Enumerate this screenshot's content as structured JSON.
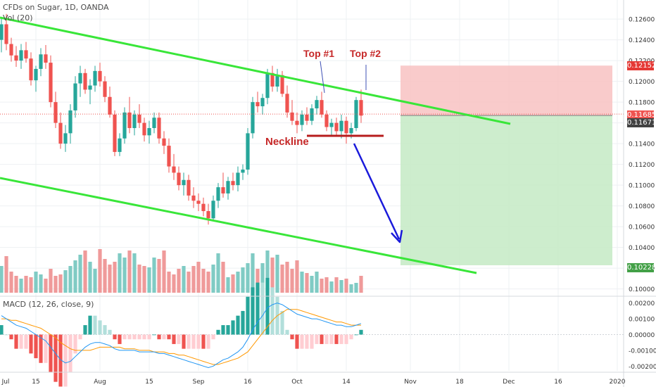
{
  "header": {
    "symbol": "CFDs on Sugar, 1D, OANDA",
    "volume_label": "Vol (20)",
    "macd_label": "MACD (12, 26, close, 9)"
  },
  "colors": {
    "up": "#26a69a",
    "down": "#ef5350",
    "up_volume": "#80cbc4",
    "down_volume": "#ef9a9a",
    "channel": "#39e639",
    "neckline": "#b71c1c",
    "target_arrow": "#1a1adb",
    "macd_line": "#2196f3",
    "signal_line": "#ff9800",
    "stop_zone": "#f8c2c2",
    "target_zone": "#c8ebc8"
  },
  "annotations": {
    "top1": "Top #1",
    "top2": "Top #2",
    "neckline": "Neckline"
  },
  "price_tags": [
    {
      "label": "0.12152",
      "bg": "#e53935"
    },
    {
      "label": "0.11685",
      "bg": "#ef5350"
    },
    {
      "label": "0.11671",
      "bg": "#424242"
    },
    {
      "label": "0.10228",
      "bg": "#43a047"
    }
  ],
  "chart_data": [
    {
      "type": "candlestick",
      "price_axis": {
        "ylim": [
          0.0995,
          0.1275
        ],
        "ticks": [
          "0.12600",
          "0.12400",
          "0.12200",
          "0.12000",
          "0.11800",
          "0.11600",
          "0.11400",
          "0.11200",
          "0.11000",
          "0.10800",
          "0.10600",
          "0.10400",
          "0.10200",
          "0.10000"
        ]
      },
      "x_ticks": [
        {
          "label": "Jul",
          "bar": -3
        },
        {
          "label": "15",
          "bar": 7
        },
        {
          "label": "Aug",
          "bar": 20
        },
        {
          "label": "15",
          "bar": 30
        },
        {
          "label": "Sep",
          "bar": 40
        },
        {
          "label": "16",
          "bar": 50
        },
        {
          "label": "Oct",
          "bar": 60
        },
        {
          "label": "14",
          "bar": 70
        },
        {
          "label": "Nov",
          "bar": 83
        },
        {
          "label": "18",
          "bar": 93
        },
        {
          "label": "Dec",
          "bar": 103
        },
        {
          "label": "16",
          "bar": 113
        },
        {
          "label": "2020",
          "bar": 125
        },
        {
          "label": "20",
          "bar": 137
        }
      ],
      "candles": [
        {
          "o": 0.124,
          "h": 0.1262,
          "l": 0.1228,
          "c": 0.1255
        },
        {
          "o": 0.1255,
          "h": 0.1265,
          "l": 0.123,
          "c": 0.1236
        },
        {
          "o": 0.1236,
          "h": 0.1242,
          "l": 0.1219,
          "c": 0.1225
        },
        {
          "o": 0.1225,
          "h": 0.1234,
          "l": 0.1214,
          "c": 0.122
        },
        {
          "o": 0.122,
          "h": 0.1236,
          "l": 0.1212,
          "c": 0.123
        },
        {
          "o": 0.123,
          "h": 0.1238,
          "l": 0.1218,
          "c": 0.1222
        },
        {
          "o": 0.1222,
          "h": 0.1228,
          "l": 0.1196,
          "c": 0.1201
        },
        {
          "o": 0.1201,
          "h": 0.1215,
          "l": 0.119,
          "c": 0.1212
        },
        {
          "o": 0.1212,
          "h": 0.1232,
          "l": 0.1205,
          "c": 0.1226
        },
        {
          "o": 0.1226,
          "h": 0.1235,
          "l": 0.1212,
          "c": 0.1218
        },
        {
          "o": 0.1218,
          "h": 0.1225,
          "l": 0.1175,
          "c": 0.118
        },
        {
          "o": 0.118,
          "h": 0.119,
          "l": 0.1155,
          "c": 0.116
        },
        {
          "o": 0.116,
          "h": 0.117,
          "l": 0.1135,
          "c": 0.114
        },
        {
          "o": 0.114,
          "h": 0.1158,
          "l": 0.1132,
          "c": 0.115
        },
        {
          "o": 0.115,
          "h": 0.1178,
          "l": 0.114,
          "c": 0.1172
        },
        {
          "o": 0.1172,
          "h": 0.1205,
          "l": 0.1165,
          "c": 0.1198
        },
        {
          "o": 0.1198,
          "h": 0.1215,
          "l": 0.1185,
          "c": 0.1208
        },
        {
          "o": 0.1208,
          "h": 0.1212,
          "l": 0.1188,
          "c": 0.1192
        },
        {
          "o": 0.1192,
          "h": 0.1202,
          "l": 0.1178,
          "c": 0.1196
        },
        {
          "o": 0.1196,
          "h": 0.1215,
          "l": 0.119,
          "c": 0.121
        },
        {
          "o": 0.121,
          "h": 0.1218,
          "l": 0.1195,
          "c": 0.12
        },
        {
          "o": 0.12,
          "h": 0.1205,
          "l": 0.118,
          "c": 0.1185
        },
        {
          "o": 0.1185,
          "h": 0.1195,
          "l": 0.1165,
          "c": 0.1168
        },
        {
          "o": 0.1168,
          "h": 0.1172,
          "l": 0.1128,
          "c": 0.1132
        },
        {
          "o": 0.1132,
          "h": 0.115,
          "l": 0.1128,
          "c": 0.1145
        },
        {
          "o": 0.1145,
          "h": 0.1175,
          "l": 0.114,
          "c": 0.117
        },
        {
          "o": 0.117,
          "h": 0.1185,
          "l": 0.115,
          "c": 0.1155
        },
        {
          "o": 0.1155,
          "h": 0.1172,
          "l": 0.1148,
          "c": 0.1168
        },
        {
          "o": 0.1168,
          "h": 0.1178,
          "l": 0.1155,
          "c": 0.116
        },
        {
          "o": 0.116,
          "h": 0.1165,
          "l": 0.1142,
          "c": 0.1148
        },
        {
          "o": 0.1148,
          "h": 0.1162,
          "l": 0.114,
          "c": 0.1155
        },
        {
          "o": 0.1155,
          "h": 0.117,
          "l": 0.115,
          "c": 0.1165
        },
        {
          "o": 0.1165,
          "h": 0.117,
          "l": 0.114,
          "c": 0.1145
        },
        {
          "o": 0.1145,
          "h": 0.1152,
          "l": 0.113,
          "c": 0.1138
        },
        {
          "o": 0.1138,
          "h": 0.1145,
          "l": 0.1112,
          "c": 0.1118
        },
        {
          "o": 0.1118,
          "h": 0.113,
          "l": 0.1105,
          "c": 0.1112
        },
        {
          "o": 0.1112,
          "h": 0.1118,
          "l": 0.1095,
          "c": 0.11
        },
        {
          "o": 0.11,
          "h": 0.1112,
          "l": 0.109,
          "c": 0.1105
        },
        {
          "o": 0.1105,
          "h": 0.111,
          "l": 0.1085,
          "c": 0.109
        },
        {
          "o": 0.109,
          "h": 0.1098,
          "l": 0.1078,
          "c": 0.1085
        },
        {
          "o": 0.1085,
          "h": 0.1092,
          "l": 0.1075,
          "c": 0.1082
        },
        {
          "o": 0.1082,
          "h": 0.1088,
          "l": 0.107,
          "c": 0.1075
        },
        {
          "o": 0.1075,
          "h": 0.1082,
          "l": 0.1062,
          "c": 0.1068
        },
        {
          "o": 0.1068,
          "h": 0.109,
          "l": 0.1066,
          "c": 0.1085
        },
        {
          "o": 0.1085,
          "h": 0.1102,
          "l": 0.1078,
          "c": 0.1098
        },
        {
          "o": 0.1098,
          "h": 0.1112,
          "l": 0.1088,
          "c": 0.1092
        },
        {
          "o": 0.1092,
          "h": 0.1108,
          "l": 0.1086,
          "c": 0.1104
        },
        {
          "o": 0.1104,
          "h": 0.1112,
          "l": 0.1095,
          "c": 0.11
        },
        {
          "o": 0.11,
          "h": 0.1118,
          "l": 0.1094,
          "c": 0.1112
        },
        {
          "o": 0.1112,
          "h": 0.112,
          "l": 0.1105,
          "c": 0.1115
        },
        {
          "o": 0.1115,
          "h": 0.1155,
          "l": 0.111,
          "c": 0.115
        },
        {
          "o": 0.115,
          "h": 0.1185,
          "l": 0.1145,
          "c": 0.118
        },
        {
          "o": 0.118,
          "h": 0.119,
          "l": 0.117,
          "c": 0.1176
        },
        {
          "o": 0.1176,
          "h": 0.1188,
          "l": 0.1168,
          "c": 0.1184
        },
        {
          "o": 0.1184,
          "h": 0.1212,
          "l": 0.1178,
          "c": 0.1208
        },
        {
          "o": 0.1208,
          "h": 0.1215,
          "l": 0.119,
          "c": 0.1195
        },
        {
          "o": 0.1195,
          "h": 0.1212,
          "l": 0.119,
          "c": 0.1206
        },
        {
          "o": 0.1206,
          "h": 0.121,
          "l": 0.1185,
          "c": 0.1188
        },
        {
          "o": 0.1188,
          "h": 0.1196,
          "l": 0.1165,
          "c": 0.117
        },
        {
          "o": 0.117,
          "h": 0.1182,
          "l": 0.1158,
          "c": 0.1162
        },
        {
          "o": 0.1162,
          "h": 0.117,
          "l": 0.115,
          "c": 0.1158
        },
        {
          "o": 0.1158,
          "h": 0.1172,
          "l": 0.1152,
          "c": 0.1168
        },
        {
          "o": 0.1168,
          "h": 0.1175,
          "l": 0.1158,
          "c": 0.1162
        },
        {
          "o": 0.1162,
          "h": 0.1178,
          "l": 0.1158,
          "c": 0.1174
        },
        {
          "o": 0.1174,
          "h": 0.1186,
          "l": 0.1168,
          "c": 0.1182
        },
        {
          "o": 0.1182,
          "h": 0.119,
          "l": 0.1165,
          "c": 0.1168
        },
        {
          "o": 0.1168,
          "h": 0.1172,
          "l": 0.1152,
          "c": 0.1156
        },
        {
          "o": 0.1156,
          "h": 0.1164,
          "l": 0.1148,
          "c": 0.116
        },
        {
          "o": 0.116,
          "h": 0.1165,
          "l": 0.1148,
          "c": 0.1152
        },
        {
          "o": 0.1152,
          "h": 0.1168,
          "l": 0.1145,
          "c": 0.1162
        },
        {
          "o": 0.1162,
          "h": 0.1166,
          "l": 0.114,
          "c": 0.115
        },
        {
          "o": 0.115,
          "h": 0.116,
          "l": 0.1145,
          "c": 0.1155
        },
        {
          "o": 0.1155,
          "h": 0.1185,
          "l": 0.1152,
          "c": 0.1182
        },
        {
          "o": 0.1182,
          "h": 0.1192,
          "l": 0.116,
          "c": 0.1167
        }
      ],
      "volume": {
        "max": 100,
        "bars": [
          38,
          52,
          30,
          24,
          20,
          24,
          22,
          30,
          26,
          20,
          34,
          24,
          26,
          32,
          38,
          46,
          54,
          60,
          44,
          34,
          62,
          48,
          40,
          44,
          56,
          50,
          60,
          56,
          40,
          38,
          36,
          50,
          48,
          60,
          30,
          26,
          34,
          38,
          30,
          38,
          44,
          34,
          30,
          40,
          56,
          44,
          22,
          26,
          30,
          36,
          42,
          56,
          34,
          42,
          60,
          50,
          54,
          40,
          44,
          34,
          46,
          30,
          28,
          24,
          30,
          20,
          22,
          16,
          22,
          18,
          20,
          12,
          14,
          24
        ]
      },
      "macd": {
        "ylim": [
          -0.0023,
          0.0023
        ],
        "ticks": [
          "0.00200",
          "0.00100",
          "0.00000",
          "-0.00100",
          "-0.00200"
        ],
        "macd_line": [
          0.0012,
          0.001,
          0.0008,
          0.0006,
          0.0005,
          0.0004,
          0.0002,
          0.0,
          -0.0002,
          -0.0004,
          -0.0008,
          -0.0012,
          -0.0016,
          -0.0018,
          -0.0017,
          -0.0014,
          -0.0011,
          -0.0008,
          -0.0006,
          -0.0005,
          -0.0005,
          -0.0006,
          -0.0007,
          -0.0009,
          -0.001,
          -0.001,
          -0.001,
          -0.001,
          -0.0011,
          -0.0011,
          -0.0011,
          -0.0011,
          -0.0012,
          -0.0012,
          -0.0013,
          -0.0014,
          -0.0015,
          -0.0016,
          -0.0017,
          -0.0018,
          -0.0019,
          -0.002,
          -0.0021,
          -0.002,
          -0.0018,
          -0.0016,
          -0.0015,
          -0.0013,
          -0.0011,
          -0.0008,
          -0.0003,
          0.0003,
          0.0008,
          0.0012,
          0.0017,
          0.0019,
          0.002,
          0.0019,
          0.0017,
          0.0015,
          0.0013,
          0.0012,
          0.0011,
          0.001,
          0.001,
          0.0009,
          0.0008,
          0.0007,
          0.0006,
          0.0006,
          0.0005,
          0.0005,
          0.0006,
          0.0007
        ],
        "signal_line": [
          0.001,
          0.001,
          0.0009,
          0.0009,
          0.0008,
          0.0007,
          0.0006,
          0.0005,
          0.0004,
          0.0002,
          0.0,
          -0.0002,
          -0.0005,
          -0.0007,
          -0.0009,
          -0.001,
          -0.001,
          -0.001,
          -0.001,
          -0.0009,
          -0.0008,
          -0.0008,
          -0.0008,
          -0.0008,
          -0.0008,
          -0.0009,
          -0.0009,
          -0.0009,
          -0.001,
          -0.001,
          -0.001,
          -0.0011,
          -0.0011,
          -0.0011,
          -0.0012,
          -0.0012,
          -0.0013,
          -0.0013,
          -0.0014,
          -0.0015,
          -0.0016,
          -0.0017,
          -0.0018,
          -0.0019,
          -0.0019,
          -0.0018,
          -0.0017,
          -0.0016,
          -0.0015,
          -0.0013,
          -0.0011,
          -0.0007,
          -0.0003,
          0.0001,
          0.0005,
          0.0009,
          0.0012,
          0.0014,
          0.0016,
          0.0016,
          0.0016,
          0.0015,
          0.0014,
          0.0013,
          0.0012,
          0.0011,
          0.001,
          0.0009,
          0.0008,
          0.0008,
          0.0007,
          0.0006,
          0.0006,
          0.0006
        ]
      }
    }
  ]
}
